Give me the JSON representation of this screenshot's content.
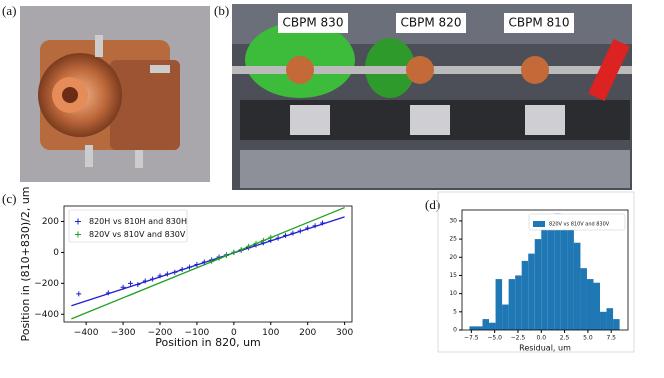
{
  "panel_labels": [
    "(a)",
    "(b)",
    "(c)",
    "(d)"
  ],
  "photo_labels": [
    "CBPM 830",
    "CBPM 820",
    "CBPM 810"
  ],
  "chart_data": [
    {
      "type": "scatter",
      "xlabel": "Position in 820, um",
      "ylabel": "Position in (810+830)/2, um",
      "xlim": [
        -460,
        320
      ],
      "ylim": [
        -450,
        300
      ],
      "xticks": [
        {
          "value": -400,
          "label": "−400"
        },
        {
          "value": -300,
          "label": "−300"
        },
        {
          "value": -200,
          "label": "−200"
        },
        {
          "value": -100,
          "label": "−100"
        },
        0,
        100,
        200,
        300
      ],
      "yticks": [
        {
          "value": -400,
          "label": "−400"
        },
        {
          "value": -200,
          "label": "−200"
        },
        0,
        200
      ],
      "legend": "upper left",
      "series": [
        {
          "name": "820H vs 810H and 830H",
          "color": "#1f1fd0",
          "x": [
            -420,
            -340,
            -300,
            -280,
            -260,
            -240,
            -220,
            -200,
            -180,
            -160,
            -140,
            -120,
            -100,
            -80,
            -60,
            -40,
            -20,
            0,
            20,
            40,
            60,
            80,
            100,
            120,
            140,
            160,
            180,
            200,
            220,
            240
          ],
          "values": [
            -268,
            -262,
            -225,
            -200,
            -208,
            -185,
            -172,
            -152,
            -140,
            -128,
            -110,
            -95,
            -78,
            -62,
            -48,
            -30,
            -16,
            0,
            14,
            30,
            48,
            62,
            78,
            92,
            110,
            125,
            138,
            158,
            172,
            190
          ]
        },
        {
          "name": "820V vs 810V and 830V",
          "color": "#22a022",
          "x": [
            -60,
            -40,
            -20,
            0,
            20,
            40,
            60,
            80,
            100
          ],
          "values": [
            -58,
            -38,
            -20,
            0,
            18,
            40,
            58,
            78,
            98
          ]
        }
      ],
      "fit_lines": [
        {
          "color": "#1f1fd0",
          "x": [
            -440,
            300
          ],
          "values": [
            -345,
            230
          ]
        },
        {
          "color": "#22a022",
          "x": [
            -440,
            300
          ],
          "values": [
            -430,
            290
          ]
        }
      ]
    },
    {
      "type": "histogram",
      "xlabel": "Residual, um",
      "xlim": [
        -8.5,
        9.3
      ],
      "ylim": [
        0,
        33
      ],
      "xticks": [
        {
          "value": -7.5,
          "label": "−7.5"
        },
        {
          "value": -5,
          "label": "−5.0"
        },
        {
          "value": -2.5,
          "label": "−2.5"
        },
        {
          "value": 0,
          "label": "0.0"
        },
        {
          "value": 2.5,
          "label": "2.5"
        },
        {
          "value": 5,
          "label": "5.0"
        },
        {
          "value": 7.5,
          "label": "7.5"
        }
      ],
      "yticks": [
        0,
        5,
        10,
        15,
        20,
        25,
        30
      ],
      "legend": "upper right",
      "series": [
        {
          "name": "820V vs 810V and 830V",
          "color": "#1f77b4",
          "bins": [
            -7.7,
            -7.0,
            -6.3,
            -5.6,
            -4.9,
            -4.2,
            -3.5,
            -2.8,
            -2.1,
            -1.4,
            -0.7,
            0,
            0.7,
            1.4,
            2.1,
            2.8,
            3.5,
            4.2,
            4.9,
            5.6,
            6.3,
            7.0,
            7.7,
            8.4
          ],
          "values": [
            1,
            1,
            3,
            2,
            14,
            7,
            14,
            15,
            19,
            21,
            25,
            31,
            30,
            32,
            29,
            28,
            24,
            17,
            14,
            13,
            5,
            6,
            3
          ]
        }
      ]
    }
  ]
}
